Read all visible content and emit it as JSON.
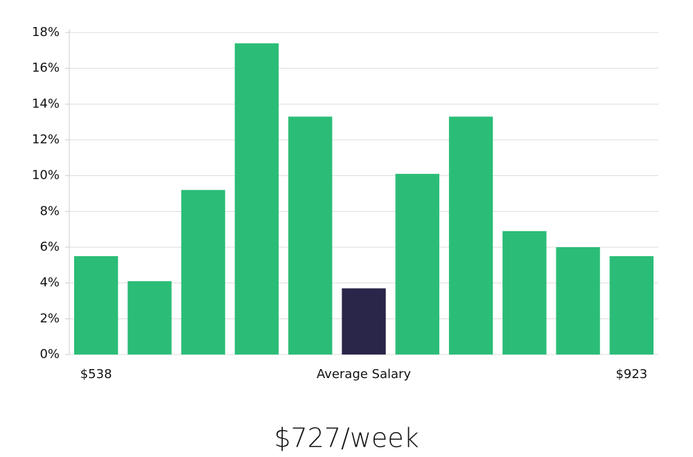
{
  "chart_data": {
    "type": "bar",
    "categories": [
      "$538",
      null,
      null,
      null,
      null,
      "Average Salary",
      null,
      null,
      null,
      null,
      "$923"
    ],
    "values": [
      5.5,
      4.1,
      9.2,
      17.4,
      13.3,
      3.7,
      10.1,
      13.3,
      6.9,
      6.0,
      5.5
    ],
    "colors": [
      "#2bbd77",
      "#2bbd77",
      "#2bbd77",
      "#2bbd77",
      "#2bbd77",
      "#29264a",
      "#2bbd77",
      "#2bbd77",
      "#2bbd77",
      "#2bbd77",
      "#2bbd77"
    ],
    "ylim": [
      0,
      18.2
    ],
    "yticks": [
      {
        "value": 0,
        "label": "0%"
      },
      {
        "value": 2,
        "label": "2%"
      },
      {
        "value": 4,
        "label": "4%"
      },
      {
        "value": 6,
        "label": "6%"
      },
      {
        "value": 8,
        "label": "8%"
      },
      {
        "value": 10,
        "label": "10%"
      },
      {
        "value": 12,
        "label": "12%"
      },
      {
        "value": 14,
        "label": "14%"
      },
      {
        "value": 16,
        "label": "16%"
      },
      {
        "value": 18,
        "label": "18%"
      }
    ],
    "grid": true,
    "annotation": "$727/week"
  }
}
